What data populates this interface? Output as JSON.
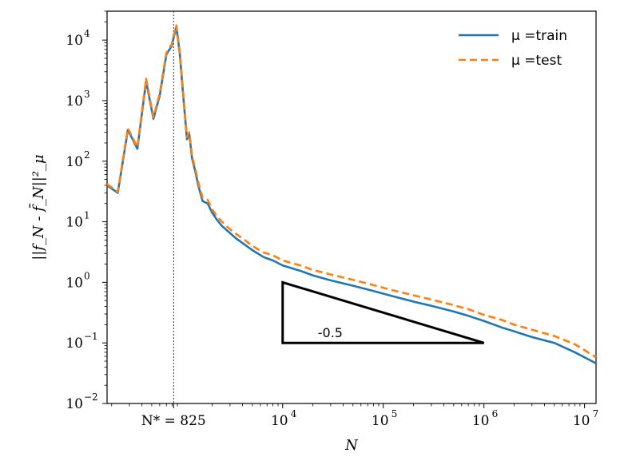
{
  "chart_data": {
    "type": "line",
    "xlabel": "N",
    "ylabel": "||f_N - f̄_N||²_μ",
    "xscale": "log",
    "yscale": "log",
    "xlim": [
      180,
      13000000
    ],
    "ylim": [
      0.01,
      30000
    ],
    "grid": false,
    "legend_position": "top-right",
    "x_ticks": [
      {
        "value": 825,
        "label": "N* = 825"
      },
      {
        "value": 10000,
        "base": "10",
        "exp": "4"
      },
      {
        "value": 100000,
        "base": "10",
        "exp": "5"
      },
      {
        "value": 1000000,
        "base": "10",
        "exp": "6"
      },
      {
        "value": 10000000,
        "base": "10",
        "exp": "7"
      }
    ],
    "y_ticks": [
      {
        "value": 0.01,
        "base": "10",
        "exp": "−2"
      },
      {
        "value": 0.1,
        "base": "10",
        "exp": "−1"
      },
      {
        "value": 1,
        "base": "10",
        "exp": "0"
      },
      {
        "value": 10,
        "base": "10",
        "exp": "1"
      },
      {
        "value": 100,
        "base": "10",
        "exp": "2"
      },
      {
        "value": 1000,
        "base": "10",
        "exp": "3"
      },
      {
        "value": 10000,
        "base": "10",
        "exp": "4"
      }
    ],
    "vline": {
      "x": 825,
      "style": "dotted"
    },
    "series": [
      {
        "name": "μ =train",
        "color": "#1f77b4",
        "style": "solid",
        "x": [
          180,
          230,
          290,
          360,
          440,
          520,
          600,
          700,
          790,
          825,
          880,
          950,
          1050,
          1120,
          1180,
          1260,
          1350,
          1450,
          1600,
          1800,
          2000,
          2250,
          2500,
          3000,
          3500,
          4200,
          5000,
          6500,
          8000,
          10000,
          15000,
          20000,
          30000,
          50000,
          80000,
          120000,
          200000,
          300000,
          500000,
          700000,
          1000000,
          1500000,
          2000000,
          3000000,
          5000000,
          8000000,
          13000000
        ],
        "values": [
          40,
          30,
          330,
          160,
          2100,
          500,
          1200,
          5800,
          8000,
          11000,
          16500,
          6000,
          800,
          230,
          280,
          110,
          70,
          40,
          22,
          20,
          14,
          10.5,
          8.5,
          6.5,
          5.2,
          4.2,
          3.4,
          2.6,
          2.3,
          1.9,
          1.55,
          1.3,
          1.08,
          0.88,
          0.72,
          0.6,
          0.48,
          0.41,
          0.33,
          0.28,
          0.23,
          0.18,
          0.155,
          0.125,
          0.1,
          0.07,
          0.046
        ]
      },
      {
        "name": "μ =test",
        "color": "#ff7f0e",
        "style": "dashed",
        "x": [
          180,
          230,
          290,
          360,
          440,
          520,
          600,
          700,
          790,
          825,
          880,
          950,
          1050,
          1120,
          1180,
          1260,
          1350,
          1450,
          1600,
          1800,
          2000,
          2250,
          2500,
          3000,
          3500,
          4200,
          5000,
          6500,
          8000,
          10000,
          15000,
          20000,
          30000,
          50000,
          80000,
          120000,
          200000,
          300000,
          500000,
          700000,
          1000000,
          1500000,
          2000000,
          3000000,
          5000000,
          8000000,
          13000000
        ],
        "values": [
          42,
          31,
          350,
          170,
          2300,
          530,
          1300,
          6200,
          8500,
          11800,
          17500,
          6500,
          900,
          250,
          300,
          120,
          78,
          45,
          25,
          23,
          16,
          12,
          10,
          7.5,
          6.2,
          5,
          4,
          3.1,
          2.8,
          2.3,
          1.9,
          1.6,
          1.35,
          1.1,
          0.9,
          0.75,
          0.61,
          0.52,
          0.42,
          0.36,
          0.29,
          0.24,
          0.2,
          0.165,
          0.13,
          0.095,
          0.058
        ]
      }
    ],
    "annotation": {
      "label": "-0.5",
      "triangle": {
        "x1": 10000,
        "x2": 1000000,
        "y_low": 0.1,
        "y_high": 1
      }
    }
  }
}
